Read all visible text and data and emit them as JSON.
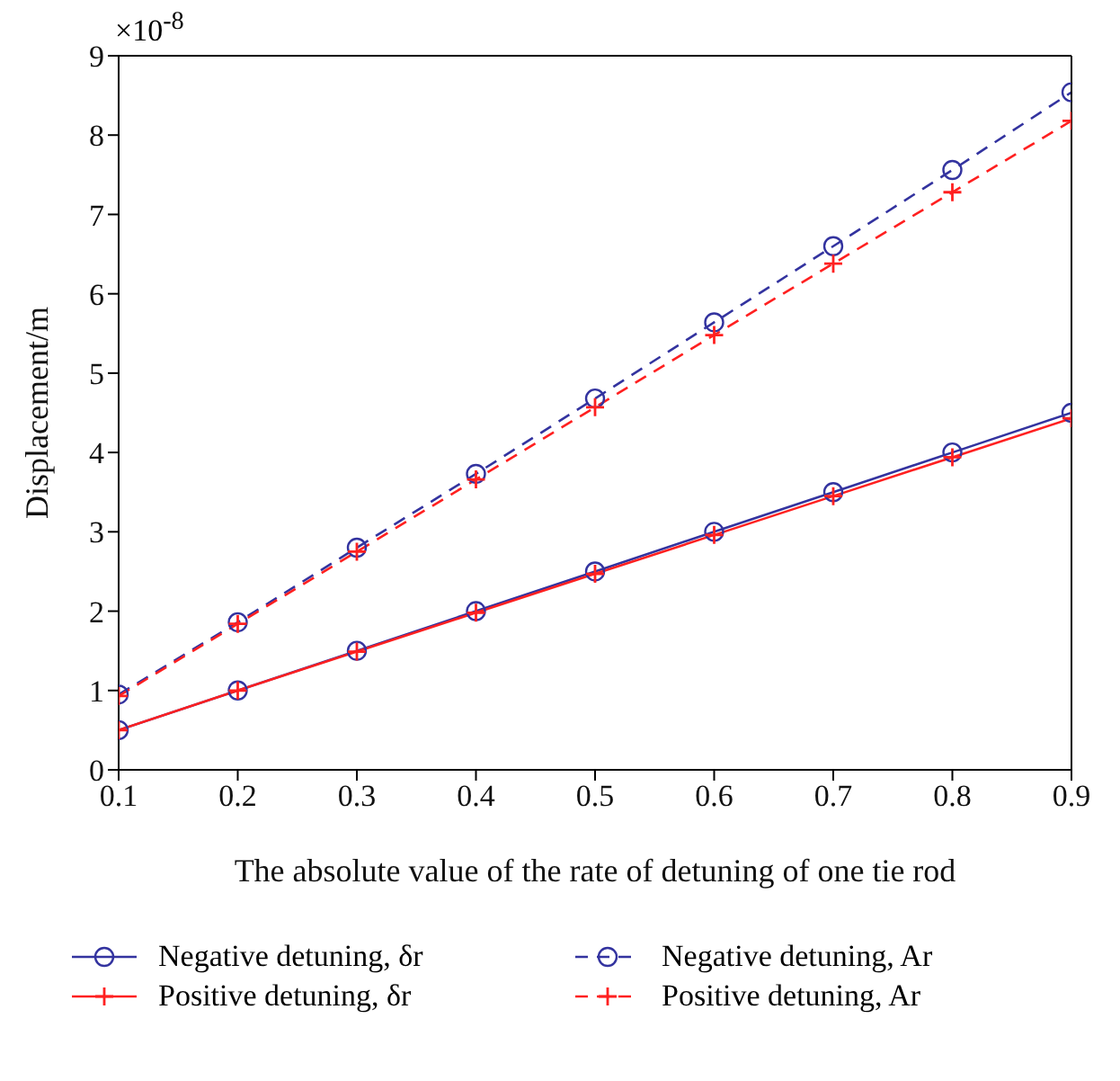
{
  "chart_data": {
    "type": "line",
    "xlabel": "The absolute value of the rate of detuning of one tie rod",
    "ylabel": "Displacement/m",
    "annotations": [
      "×10$^{-8}$"
    ],
    "x": [
      0.1,
      0.2,
      0.3,
      0.4,
      0.5,
      0.6,
      0.7,
      0.8,
      0.9
    ],
    "xlim": [
      0.1,
      0.9
    ],
    "xticks": [
      0.1,
      0.2,
      0.3,
      0.4,
      0.5,
      0.6,
      0.7,
      0.8,
      0.9
    ],
    "ylim": [
      0,
      9
    ],
    "yticks": [
      0,
      1,
      2,
      3,
      4,
      5,
      6,
      7,
      8,
      9
    ],
    "grid": false,
    "legend": "bottom",
    "series": [
      {
        "name": "Negative detuning, δr",
        "color": "#33339f",
        "marker": "circle",
        "line_style": "solid",
        "values": [
          0.5,
          1.0,
          1.5,
          2.0,
          2.5,
          3.0,
          3.5,
          4.0,
          4.5
        ]
      },
      {
        "name": "Positive detuning, δr",
        "color": "#ff2020",
        "marker": "cross",
        "line_style": "solid",
        "values": [
          0.5,
          1.0,
          1.49,
          1.98,
          2.47,
          2.96,
          3.45,
          3.94,
          4.43
        ]
      },
      {
        "name": "Negative detuning, Ar",
        "color": "#33339f",
        "marker": "circle",
        "line_style": "dashed",
        "values": [
          0.95,
          1.86,
          2.8,
          3.73,
          4.68,
          5.64,
          6.6,
          7.56,
          8.54
        ]
      },
      {
        "name": "Positive detuning, Ar",
        "color": "#ff2020",
        "marker": "cross",
        "line_style": "dashed",
        "values": [
          0.93,
          1.84,
          2.75,
          3.66,
          4.57,
          5.48,
          6.38,
          7.28,
          8.18
        ]
      }
    ]
  }
}
